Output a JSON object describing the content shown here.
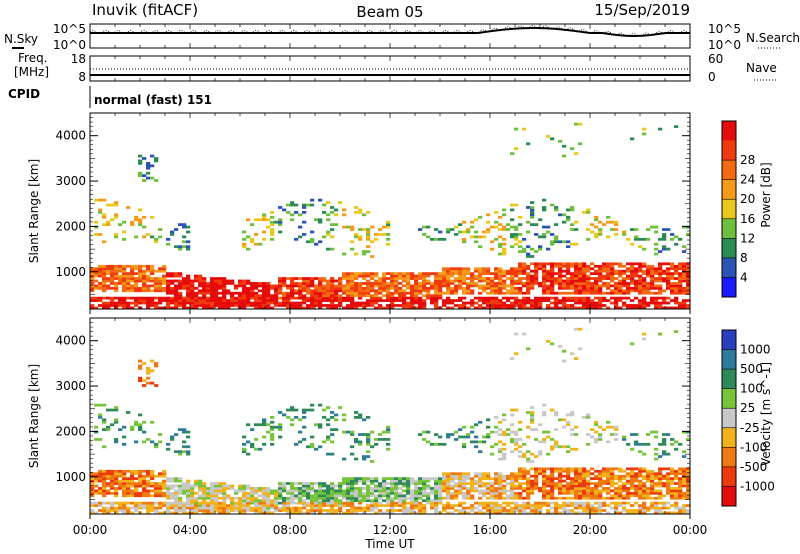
{
  "header": {
    "station": "Inuvik (fitACF)",
    "beam": "Beam 05",
    "date": "15/Sep/2019"
  },
  "noise_panel": {
    "left_label": "N.Sky",
    "right_label": "N.Search",
    "left_ticks": [
      "10^5",
      "10^0"
    ],
    "right_ticks": [
      "10^5",
      "10^0"
    ]
  },
  "freq_panel": {
    "left_label_1": "Freq.",
    "left_label_2": "[MHz]",
    "right_label": "Nave",
    "left_ticks": [
      "18",
      "8"
    ],
    "right_ticks": [
      "60",
      "0"
    ]
  },
  "cpid": {
    "label": "CPID",
    "mode": "normal (fast) 151"
  },
  "chart_data": [
    {
      "type": "heatmap",
      "title": "",
      "ylabel": "Slant Range [km]",
      "xlabel": "",
      "y_ticks": [
        1000,
        2000,
        3000,
        4000
      ],
      "ylim": [
        180,
        4500
      ],
      "colorbar": {
        "label": "Power [dB]",
        "ticks": [
          "4",
          "8",
          "12",
          "16",
          "20",
          "24",
          "28"
        ],
        "colors": [
          "#1a1aff",
          "#2b55b5",
          "#2c8a55",
          "#6fbf3e",
          "#e8c81c",
          "#f59a1a",
          "#f46a10",
          "#f03a0d",
          "#e60b0b"
        ]
      }
    },
    {
      "type": "heatmap",
      "title": "",
      "ylabel": "Slant Range [km]",
      "xlabel": "Time UT",
      "y_ticks": [
        1000,
        2000,
        3000,
        4000
      ],
      "ylim": [
        180,
        4500
      ],
      "x_ticks": [
        "00:00",
        "04:00",
        "08:00",
        "12:00",
        "16:00",
        "20:00",
        "00:00"
      ],
      "colorbar": {
        "label": "Velocity [m s^-1]",
        "ticks": [
          "1000",
          "500",
          "100",
          "25",
          "-25",
          "-100",
          "-500",
          "-1000"
        ],
        "colors": [
          "#2a3fbf",
          "#2e7a9a",
          "#2f8a5a",
          "#76c43a",
          "#c8c8c8",
          "#f2b21c",
          "#f07a12",
          "#ec3a0c",
          "#e60b0b"
        ]
      }
    }
  ]
}
